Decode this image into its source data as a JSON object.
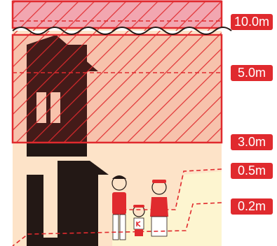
{
  "depth_labels": [
    "10.0m",
    "5.0m",
    "3.0m",
    "0.5m",
    "0.2m"
  ],
  "colors": {
    "flood_red": "#e02a2e",
    "background_peach": "#fde3c8",
    "ground_cream": "#fdf5d0",
    "house_black": "#231815"
  },
  "icons": [
    "house-icon",
    "family-illustration",
    "wave-line"
  ]
}
